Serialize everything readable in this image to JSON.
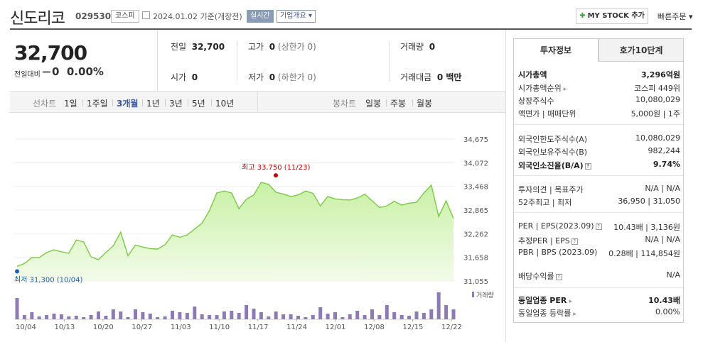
{
  "header": {
    "title": "신도리코",
    "code": "029530",
    "market": "코스피",
    "date_text": "2024.01.02 기준(개장전)",
    "live_label": "실시간",
    "corp_label": "기업개요",
    "mystock_label": "MY STOCK 추가",
    "quick_label": "빠른주문"
  },
  "price": {
    "current": "32,700",
    "change_label": "전일대비",
    "change_value": "0",
    "change_pct": "0.00%"
  },
  "quote": {
    "prev_label": "전일",
    "prev_value": "32,700",
    "high_label": "고가",
    "high_value": "0",
    "high_sub": "(상한가 0)",
    "volume_label": "거래량",
    "volume_value": "0",
    "open_label": "시가",
    "open_value": "0",
    "low_label": "저가",
    "low_value": "0",
    "low_sub": "(하한가 0)",
    "amount_label": "거래대금",
    "amount_value": "0 백만"
  },
  "periods": {
    "line_label": "선차트",
    "line_items": [
      "1일",
      "1주일",
      "3개월",
      "1년",
      "3년",
      "5년",
      "10년"
    ],
    "active": "3개월",
    "candle_label": "봉차트",
    "candle_items": [
      "일봉",
      "주봉",
      "월봉"
    ]
  },
  "chart_data": {
    "type": "area",
    "y_ticks": [
      "34,675",
      "34,072",
      "33,468",
      "32,865",
      "32,262",
      "31,658",
      "31,055"
    ],
    "ylim": [
      31055,
      34675
    ],
    "x_labels": [
      "10/04",
      "10/13",
      "10/20",
      "10/27",
      "11/03",
      "11/10",
      "11/17",
      "11/24",
      "12/01",
      "12/08",
      "12/15",
      "12/22"
    ],
    "values": [
      31430,
      31500,
      31650,
      31650,
      31780,
      31850,
      31800,
      31760,
      32100,
      32050,
      31670,
      31600,
      31780,
      31950,
      32300,
      31700,
      31970,
      31920,
      31880,
      31870,
      31980,
      32230,
      32170,
      32230,
      32380,
      32530,
      32850,
      33300,
      33350,
      33300,
      32900,
      33140,
      33250,
      33570,
      33520,
      33320,
      33270,
      33210,
      33250,
      33350,
      33290,
      32970,
      33210,
      33150,
      33130,
      33120,
      33170,
      33270,
      33100,
      32930,
      32970,
      33090,
      32990,
      33040,
      33060,
      33300,
      33500,
      32700,
      33100,
      32650
    ],
    "volume_label": "거래량",
    "volumes": [
      30,
      6,
      10,
      4,
      6,
      8,
      7,
      4,
      5,
      3,
      6,
      11,
      5,
      14,
      11,
      3,
      14,
      10,
      8,
      3,
      4,
      12,
      10,
      9,
      18,
      7,
      6,
      6,
      11,
      12,
      9,
      20,
      15,
      10,
      4,
      11,
      7,
      7,
      5,
      3,
      6,
      17,
      8,
      10,
      3,
      7,
      12,
      6,
      14,
      6,
      20,
      10,
      6,
      5,
      11,
      9,
      14,
      38,
      20,
      14
    ],
    "high_label": "최고 33,750 (11/23)",
    "low_label": "최저 31,300 (10/04)",
    "colors": {
      "line": "#7ac943",
      "fill_top": "#c8f0a4",
      "fill_bottom": "#f2fbe8",
      "volume": "#8e7bb5",
      "high": "#cc0000",
      "low": "#1f5fb8"
    }
  },
  "info": {
    "tab1": "투자정보",
    "tab2": "호가10단계",
    "rows1": [
      {
        "label": "시가총액",
        "value": "3,296억원",
        "bold": true
      },
      {
        "label": "시가총액순위",
        "value": "코스피 449위",
        "arrow": true
      },
      {
        "label": "상장주식수",
        "value": "10,080,029"
      },
      {
        "label": "액면가 | 매매단위",
        "value": "5,000원 | 1주"
      }
    ],
    "rows2": [
      {
        "label": "외국인한도주식수(A)",
        "value": "10,080,029"
      },
      {
        "label": "외국인보유주식수(B)",
        "value": "982,244"
      },
      {
        "label": "외국인소진율(B/A)",
        "value": "9.74%",
        "bold": true,
        "q": true
      }
    ],
    "rows3": [
      {
        "label": "투자의견 | 목표주가",
        "value": "N/A | N/A"
      },
      {
        "label": "52주최고 | 최저",
        "value": "36,950 | 31,050"
      }
    ],
    "rows4": [
      {
        "label": "PER | EPS(2023.09)",
        "value": "10.43배 | 3,136원",
        "q": true
      },
      {
        "label": "추정PER | EPS",
        "value": "N/A | N/A",
        "q": true
      },
      {
        "label": "PBR | BPS (2023.09)",
        "value": "0.28배 | 114,854원"
      },
      {
        "label": "배당수익률",
        "value": "N/A",
        "q": true
      }
    ],
    "rows5": [
      {
        "label": "동일업종 PER",
        "value": "10.43배",
        "bold": true,
        "arrow": true
      },
      {
        "label": "동일업종 등락률",
        "value": "0.00%",
        "arrow": true
      }
    ]
  }
}
